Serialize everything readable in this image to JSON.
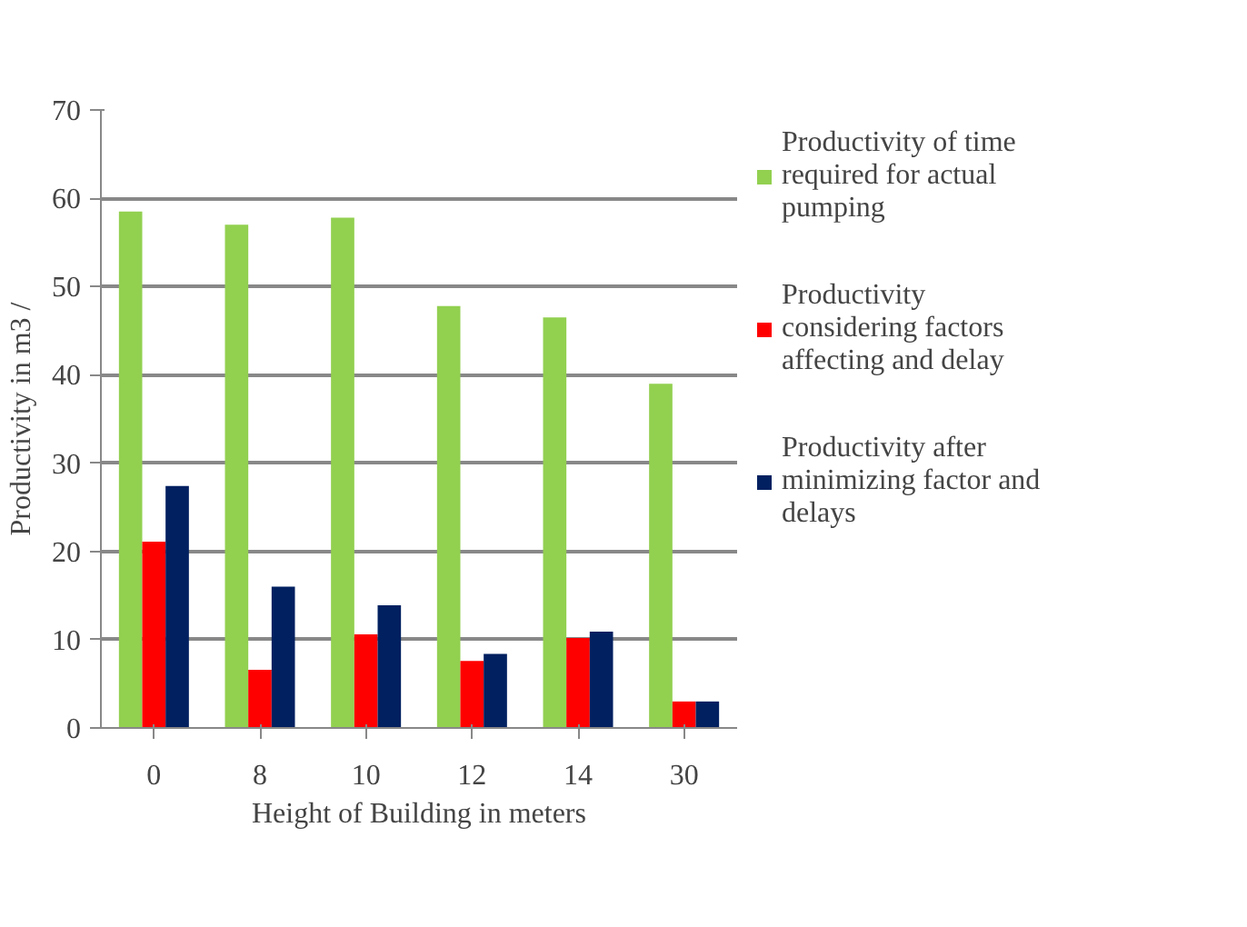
{
  "chart_data": {
    "type": "bar",
    "xlabel": "Height of Building in meters",
    "ylabel": "Productivity in m3 /",
    "categories": [
      "0",
      "8",
      "10",
      "12",
      "14",
      "30"
    ],
    "series": [
      {
        "name": "Productivity of time required for actual pumping",
        "color": "#92d050",
        "values": [
          58.5,
          57.0,
          57.8,
          47.8,
          46.5,
          39.0
        ]
      },
      {
        "name": "Productivity considering factors affecting and delay",
        "color": "#ff0000",
        "values": [
          21.1,
          6.6,
          10.6,
          7.6,
          10.2,
          3.0
        ]
      },
      {
        "name": "Productivity after minimizing factor and delays",
        "color": "#002060",
        "values": [
          27.4,
          16.0,
          13.9,
          8.4,
          10.9,
          3.0
        ]
      }
    ],
    "ylim": [
      0,
      70
    ],
    "yticks": [
      0,
      10,
      20,
      30,
      40,
      50,
      60,
      70
    ],
    "grid": "y",
    "legend": "right"
  }
}
